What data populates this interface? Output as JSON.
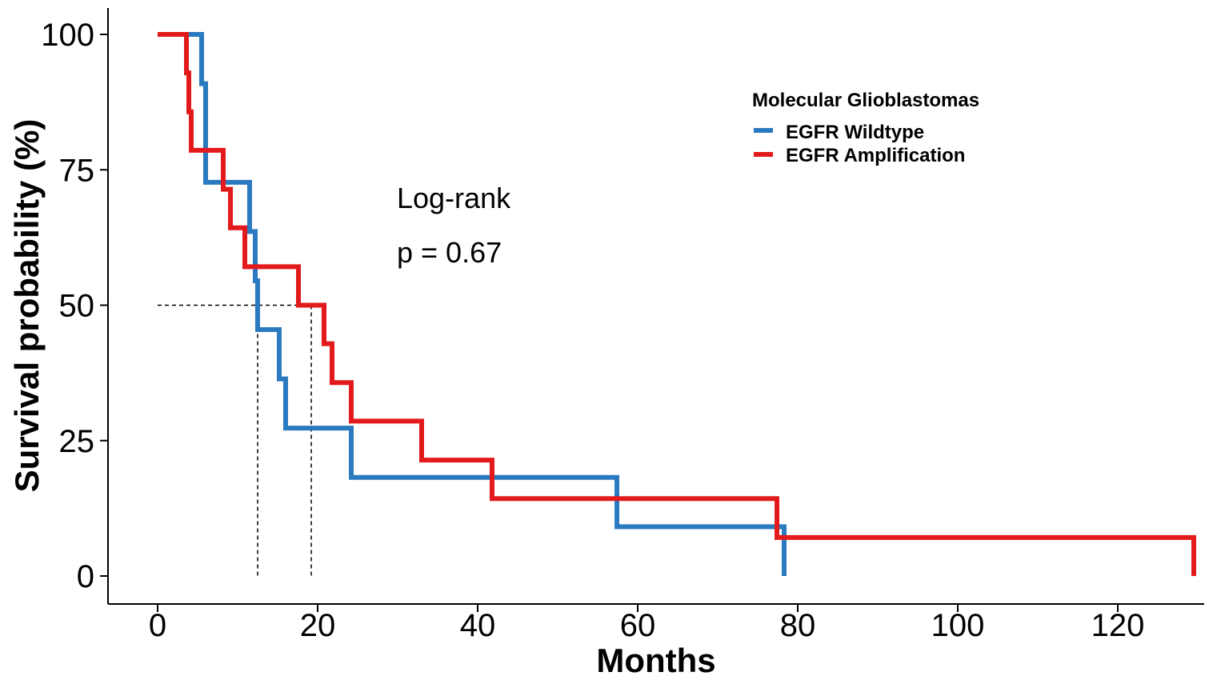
{
  "chart_data": {
    "type": "line",
    "subtype": "kaplan-meier step",
    "xlabel": "Months",
    "ylabel": "Survival probability (%)",
    "xlim": [
      0,
      130
    ],
    "ylim": [
      0,
      100
    ],
    "xticks": [
      0,
      20,
      40,
      60,
      80,
      100,
      120
    ],
    "yticks": [
      0,
      25,
      50,
      75,
      100
    ],
    "grid": false,
    "legend": {
      "title": "Molecular Glioblastomas",
      "position": "top-right"
    },
    "annotations": {
      "test_name": "Log-rank",
      "p_value": "p = 0.67"
    },
    "median_survival": [
      {
        "series": "EGFR Wildtype",
        "x": 12.5,
        "y": 50
      },
      {
        "series": "EGFR Amplification",
        "x": 19.2,
        "y": 50
      }
    ],
    "series": [
      {
        "name": "EGFR Wildtype",
        "color": "#2A7ABF",
        "points": [
          [
            0,
            100
          ],
          [
            5.5,
            100
          ],
          [
            5.5,
            90.9
          ],
          [
            6.0,
            90.9
          ],
          [
            6.0,
            81.8
          ],
          [
            6.0,
            72.7
          ],
          [
            11.5,
            72.7
          ],
          [
            11.5,
            63.6
          ],
          [
            12.2,
            63.6
          ],
          [
            12.2,
            54.5
          ],
          [
            12.5,
            54.5
          ],
          [
            12.5,
            45.5
          ],
          [
            15.2,
            45.5
          ],
          [
            15.2,
            36.4
          ],
          [
            16.0,
            36.4
          ],
          [
            16.0,
            27.3
          ],
          [
            24.2,
            27.3
          ],
          [
            24.2,
            18.2
          ],
          [
            57.4,
            18.2
          ],
          [
            57.4,
            9.1
          ],
          [
            78.3,
            9.1
          ],
          [
            78.3,
            0
          ]
        ]
      },
      {
        "name": "EGFR Amplification",
        "color": "#E31A1C",
        "points": [
          [
            0,
            100
          ],
          [
            3.6,
            100
          ],
          [
            3.6,
            92.9
          ],
          [
            3.9,
            92.9
          ],
          [
            3.9,
            85.7
          ],
          [
            4.2,
            85.7
          ],
          [
            4.2,
            78.6
          ],
          [
            8.2,
            78.6
          ],
          [
            8.2,
            71.4
          ],
          [
            9.1,
            71.4
          ],
          [
            9.1,
            64.3
          ],
          [
            10.9,
            64.3
          ],
          [
            10.9,
            57.1
          ],
          [
            17.6,
            57.1
          ],
          [
            17.6,
            50
          ],
          [
            20.8,
            50
          ],
          [
            20.8,
            42.9
          ],
          [
            21.8,
            42.9
          ],
          [
            21.8,
            35.7
          ],
          [
            24.2,
            35.7
          ],
          [
            24.2,
            28.6
          ],
          [
            33.0,
            28.6
          ],
          [
            33.0,
            21.4
          ],
          [
            41.8,
            21.4
          ],
          [
            41.8,
            14.3
          ],
          [
            77.4,
            14.3
          ],
          [
            77.4,
            7.1
          ],
          [
            129.5,
            7.1
          ],
          [
            129.5,
            0
          ]
        ]
      }
    ]
  }
}
